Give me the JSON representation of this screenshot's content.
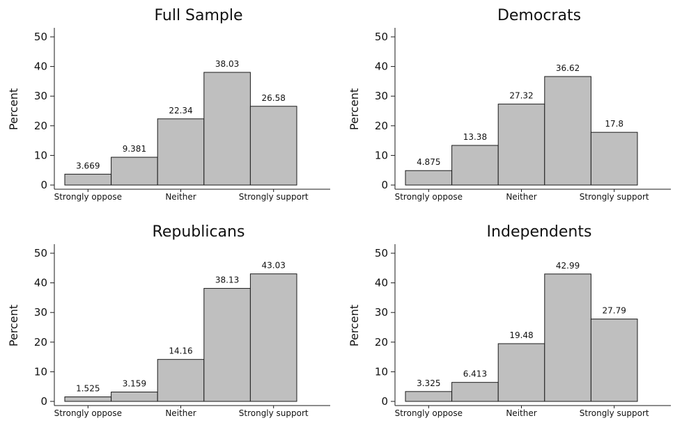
{
  "figure": {
    "shared_xticks": [
      "Strongly oppose",
      "Neither",
      "Strongly support"
    ],
    "y_label": "Percent",
    "y_ticks": [
      0,
      10,
      20,
      30,
      40,
      50
    ]
  },
  "chart_data": [
    {
      "type": "bar",
      "title": "Full Sample",
      "ylabel": "Percent",
      "xlabel": "",
      "categories": [
        "1",
        "2",
        "3",
        "4",
        "5"
      ],
      "x_tick_labels": {
        "1": "Strongly oppose",
        "3": "Neither",
        "5": "Strongly support"
      },
      "values": [
        3.669,
        9.381,
        22.34,
        38.03,
        26.58
      ],
      "value_labels": [
        "3.669",
        "9.381",
        "22.34",
        "38.03",
        "26.58"
      ],
      "ylim": [
        0,
        50
      ],
      "grid": false,
      "bar_color": "#bfbfbf"
    },
    {
      "type": "bar",
      "title": "Democrats",
      "ylabel": "Percent",
      "xlabel": "",
      "categories": [
        "1",
        "2",
        "3",
        "4",
        "5"
      ],
      "x_tick_labels": {
        "1": "Strongly oppose",
        "3": "Neither",
        "5": "Strongly support"
      },
      "values": [
        4.875,
        13.38,
        27.32,
        36.62,
        17.8
      ],
      "value_labels": [
        "4.875",
        "13.38",
        "27.32",
        "36.62",
        "17.8"
      ],
      "ylim": [
        0,
        50
      ],
      "grid": false,
      "bar_color": "#bfbfbf"
    },
    {
      "type": "bar",
      "title": "Republicans",
      "ylabel": "Percent",
      "xlabel": "",
      "categories": [
        "1",
        "2",
        "3",
        "4",
        "5"
      ],
      "x_tick_labels": {
        "1": "Strongly oppose",
        "3": "Neither",
        "5": "Strongly support"
      },
      "values": [
        1.525,
        3.159,
        14.16,
        38.13,
        43.03
      ],
      "value_labels": [
        "1.525",
        "3.159",
        "14.16",
        "38.13",
        "43.03"
      ],
      "ylim": [
        0,
        50
      ],
      "grid": false,
      "bar_color": "#bfbfbf"
    },
    {
      "type": "bar",
      "title": "Independents",
      "ylabel": "Percent",
      "xlabel": "",
      "categories": [
        "1",
        "2",
        "3",
        "4",
        "5"
      ],
      "x_tick_labels": {
        "1": "Strongly oppose",
        "3": "Neither",
        "5": "Strongly support"
      },
      "values": [
        3.325,
        6.413,
        19.48,
        42.99,
        27.79
      ],
      "value_labels": [
        "3.325",
        "6.413",
        "19.48",
        "42.99",
        "27.79"
      ],
      "ylim": [
        0,
        50
      ],
      "grid": false,
      "bar_color": "#bfbfbf"
    }
  ]
}
